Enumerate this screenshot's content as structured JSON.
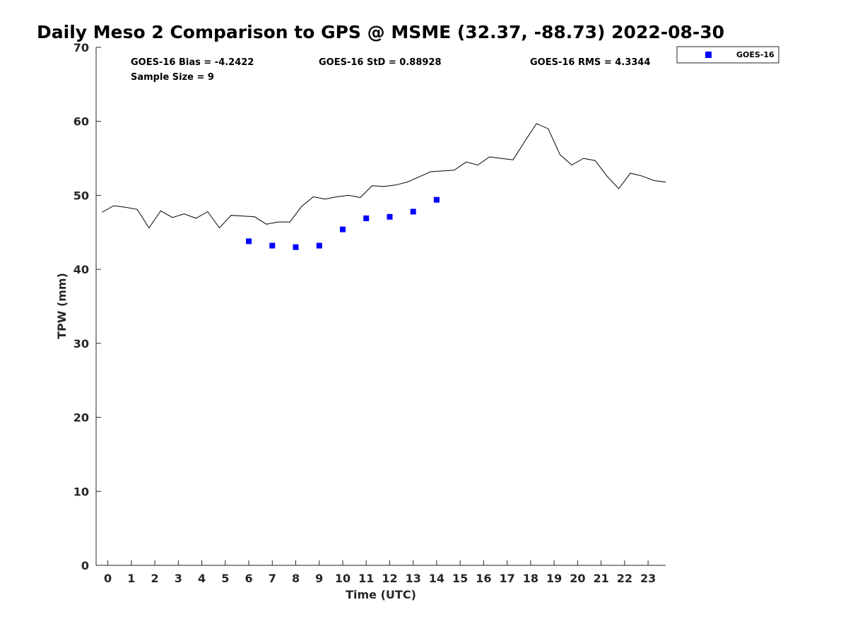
{
  "chart_data": {
    "type": "line",
    "title": "Daily Meso 2 Comparison to GPS @ MSME (32.37, -88.73) 2022-08-30",
    "xlabel": "Time (UTC)",
    "ylabel": "TPW (mm)",
    "xlim": [
      -0.5,
      23.75
    ],
    "ylim": [
      0,
      70
    ],
    "xticks": [
      0,
      1,
      2,
      3,
      4,
      5,
      6,
      7,
      8,
      9,
      10,
      11,
      12,
      13,
      14,
      15,
      16,
      17,
      18,
      19,
      20,
      21,
      22,
      23
    ],
    "yticks": [
      0,
      10,
      20,
      30,
      40,
      50,
      60,
      70
    ],
    "grid": false,
    "legend_position": "top-right, outside plot",
    "stats": {
      "bias": "GOES-16 Bias = -4.2422",
      "std": "GOES-16 StD = 0.88928",
      "rms": "GOES-16 RMS = 4.3344",
      "sample": "Sample Size = 9"
    },
    "series": [
      {
        "style": "line",
        "color": "#000000",
        "x": [
          -0.25,
          0.25,
          0.75,
          1.25,
          1.75,
          2.25,
          2.75,
          3.25,
          3.75,
          4.25,
          4.75,
          5.25,
          5.75,
          6.25,
          6.75,
          7.25,
          7.75,
          8.25,
          8.75,
          9.25,
          9.75,
          10.25,
          10.75,
          11.25,
          11.75,
          12.25,
          12.75,
          13.25,
          13.75,
          14.25,
          14.75,
          15.25,
          15.75,
          16.25,
          16.75,
          17.25,
          17.75,
          18.25,
          18.75,
          19.25,
          19.75,
          20.25,
          20.75,
          21.25,
          21.75,
          22.25,
          22.75,
          23.25,
          23.75
        ],
        "y": [
          47.7,
          48.6,
          48.4,
          48.1,
          45.6,
          47.9,
          47.0,
          47.5,
          46.9,
          47.8,
          45.6,
          47.3,
          47.2,
          47.1,
          46.1,
          46.4,
          46.4,
          48.5,
          49.8,
          49.5,
          49.8,
          50.0,
          49.7,
          51.3,
          51.2,
          51.4,
          51.8,
          52.5,
          53.2,
          53.3,
          53.4,
          54.5,
          54.1,
          55.2,
          55.0,
          54.8,
          57.3,
          59.7,
          59.0,
          55.5,
          54.1,
          55.0,
          54.7,
          52.6,
          50.9,
          53.0,
          52.6,
          52.0,
          51.8
        ]
      },
      {
        "name": "GOES-16",
        "style": "marker-square",
        "color": "#0000ff",
        "x": [
          6,
          7,
          8,
          9,
          10,
          11,
          12,
          13,
          14
        ],
        "y": [
          43.8,
          43.2,
          43.0,
          43.2,
          45.4,
          46.9,
          47.1,
          47.8,
          49.4
        ]
      }
    ]
  }
}
